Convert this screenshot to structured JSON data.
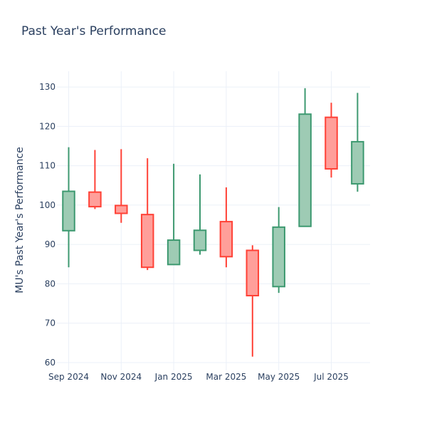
{
  "chart_data": {
    "type": "candlestick",
    "title": "Past Year's Performance",
    "xlabel": "",
    "ylabel": "MU's Past Year's Performance",
    "ylim": [
      58,
      134
    ],
    "yticks": [
      60,
      70,
      80,
      90,
      100,
      110,
      120,
      130
    ],
    "x_tick_labels": [
      {
        "label": "Sep 2024",
        "index": 0
      },
      {
        "label": "Nov 2024",
        "index": 2
      },
      {
        "label": "Jan 2025",
        "index": 4
      },
      {
        "label": "Mar 2025",
        "index": 6
      },
      {
        "label": "May 2025",
        "index": 8
      },
      {
        "label": "Jul 2025",
        "index": 10
      }
    ],
    "grid": true,
    "colors": {
      "increasing": "#3d9970",
      "increasing_fill": "#9ecbb4",
      "decreasing": "#ff4136",
      "decreasing_fill": "#ff9f9a"
    },
    "candles": [
      {
        "month": "Sep 2024",
        "open": 93.5,
        "high": 114.7,
        "low": 84.2,
        "close": 103.5
      },
      {
        "month": "Oct 2024",
        "open": 103.3,
        "high": 114.0,
        "low": 99.0,
        "close": 99.6
      },
      {
        "month": "Nov 2024",
        "open": 99.9,
        "high": 114.2,
        "low": 95.5,
        "close": 97.9
      },
      {
        "month": "Dec 2024",
        "open": 97.6,
        "high": 111.9,
        "low": 83.5,
        "close": 84.2
      },
      {
        "month": "Jan 2025",
        "open": 84.9,
        "high": 110.5,
        "low": 84.9,
        "close": 91.1
      },
      {
        "month": "Feb 2025",
        "open": 88.5,
        "high": 107.8,
        "low": 87.4,
        "close": 93.6
      },
      {
        "month": "Mar 2025",
        "open": 95.8,
        "high": 104.5,
        "low": 84.2,
        "close": 86.9
      },
      {
        "month": "Apr 2025",
        "open": 88.5,
        "high": 89.8,
        "low": 61.5,
        "close": 77.0
      },
      {
        "month": "May 2025",
        "open": 79.3,
        "high": 99.5,
        "low": 77.7,
        "close": 94.4
      },
      {
        "month": "Jun 2025",
        "open": 94.6,
        "high": 129.7,
        "low": 94.6,
        "close": 123.1
      },
      {
        "month": "Jul 2025",
        "open": 122.3,
        "high": 126.0,
        "low": 107.0,
        "close": 109.2
      },
      {
        "month": "Aug 2025",
        "open": 105.4,
        "high": 128.5,
        "low": 103.4,
        "close": 116.1
      }
    ]
  }
}
